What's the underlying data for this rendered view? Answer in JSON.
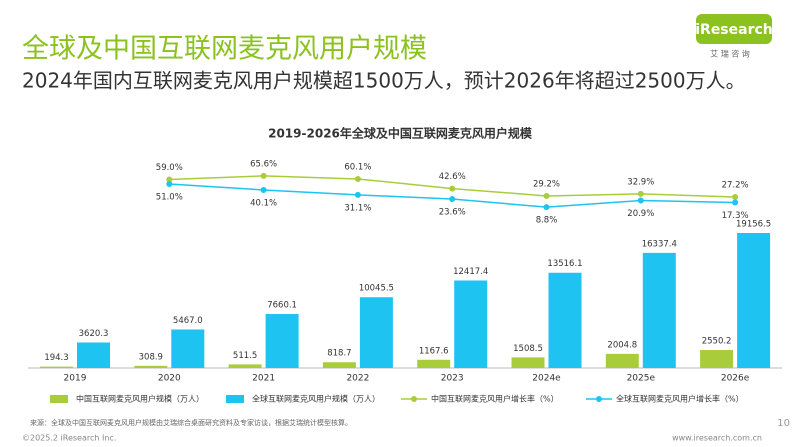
{
  "title": "全球及中国互联网麦克风用户规模",
  "subtitle": "2024年国内互联网麦克风用户规模超1500万人，预计2026年将超过2500万人。",
  "logo": {
    "name": "iResearch",
    "tagline": "艾 瑞 咨 询"
  },
  "chart_data": {
    "type": "bar",
    "title": "2019-2026年全球及中国互联网麦克风用户规模",
    "categories": [
      "2019",
      "2020",
      "2021",
      "2022",
      "2023",
      "2024e",
      "2025e",
      "2026e"
    ],
    "series": [
      {
        "name": "中国互联网麦克风用户规模（万人）",
        "type": "bar",
        "color": "#a9cd3a",
        "values": [
          194.3,
          308.9,
          511.5,
          818.7,
          1167.6,
          1508.5,
          2004.8,
          2550.2
        ]
      },
      {
        "name": "全球互联网麦克风用户规模（万人）",
        "type": "bar",
        "color": "#1fc3f2",
        "values": [
          3620.3,
          5467.0,
          7660.1,
          10045.5,
          12417.4,
          13516.1,
          16337.4,
          19156.5
        ],
        "value_labels": [
          "3620.3",
          "5467.0",
          "7660.1",
          "10045.5",
          "12417.4",
          "13516.1",
          "16337.4",
          "19156.5"
        ]
      },
      {
        "name": "中国互联网麦克风用户增长率（%）",
        "type": "line",
        "color": "#a9cd3a",
        "values": [
          null,
          59.0,
          65.6,
          60.1,
          42.6,
          29.2,
          32.9,
          27.2
        ],
        "value_labels": [
          null,
          "59.0%",
          "65.6%",
          "60.1%",
          "42.6%",
          "29.2%",
          "32.9%",
          "27.2%"
        ]
      },
      {
        "name": "全球互联网麦克风用户增长率（%）",
        "type": "line",
        "color": "#1fc3f2",
        "values": [
          null,
          51.0,
          40.1,
          31.1,
          23.6,
          8.8,
          20.9,
          17.3
        ],
        "value_labels": [
          null,
          "51.0%",
          "40.1%",
          "31.1%",
          "23.6%",
          "8.8%",
          "20.9%",
          "17.3%"
        ]
      }
    ]
  },
  "source": "来源：全球及中国互联网麦克风用户规模由艾瑞综合桌面研究资料及专家访谈，根据艾瑞统计模型核算。",
  "footer": {
    "copyright": "©2025.2 iResearch Inc.",
    "url": "www.iresearch.com.cn",
    "page": 10
  }
}
